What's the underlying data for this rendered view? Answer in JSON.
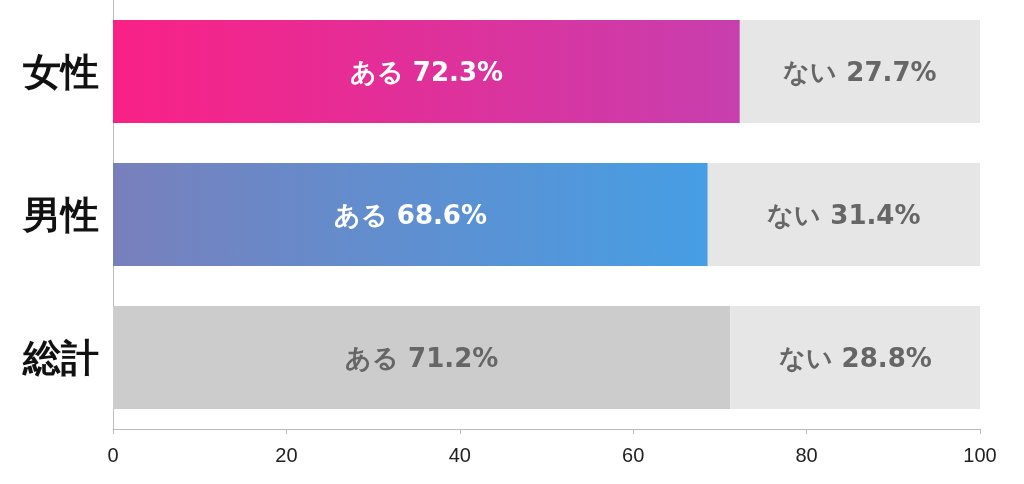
{
  "chart_data": {
    "type": "bar",
    "orientation": "horizontal",
    "stacked": true,
    "categories": [
      "女性",
      "男性",
      "総計"
    ],
    "series": [
      {
        "colors": [
          "#e0309a",
          "#5f8fd0",
          "#cccccc"
        ],
        "values": [
          72.3,
          68.6,
          71.2
        ],
        "value_labels": [
          "ある 72.3%",
          "ある 68.6%",
          "ある 71.2%"
        ]
      },
      {
        "color": "#e6e6e6",
        "values": [
          27.7,
          31.4,
          28.8
        ],
        "value_labels": [
          "ない 27.7%",
          "ない 31.4%",
          "ない 28.8%"
        ]
      }
    ],
    "xlim": [
      0,
      100
    ],
    "xticks": [
      0,
      20,
      40,
      60,
      80,
      100
    ],
    "grid": false
  }
}
